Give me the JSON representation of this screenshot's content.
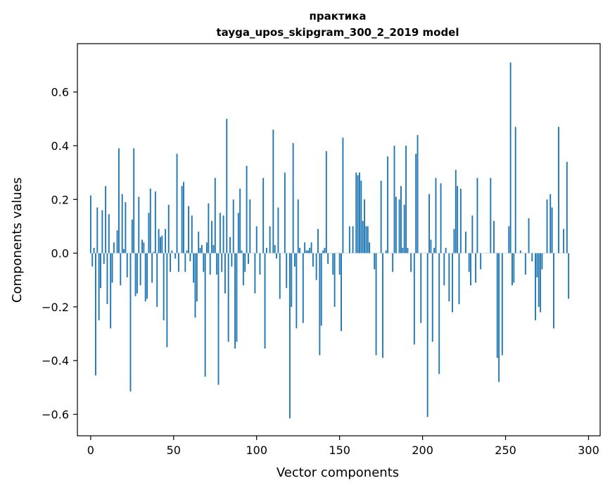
{
  "chart_data": {
    "type": "bar",
    "title": "практика",
    "subtitle": "tayga_upos_skipgram_300_2_2019 model",
    "xlabel": "Vector components",
    "ylabel": "Components values",
    "xlim": [
      -8,
      307
    ],
    "ylim": [
      -0.68,
      0.78
    ],
    "xticks": [
      0,
      50,
      100,
      150,
      200,
      250,
      300
    ],
    "yticks": [
      -0.6,
      -0.4,
      -0.2,
      0.0,
      0.2,
      0.4,
      0.6
    ],
    "ytick_labels": [
      "−0.6",
      "−0.4",
      "−0.2",
      "0.0",
      "0.2",
      "0.4",
      "0.6"
    ],
    "grid": false,
    "bar_color": "#1f77b4",
    "values": [
      0.215,
      -0.05,
      0.02,
      -0.455,
      0.17,
      -0.25,
      -0.13,
      0.16,
      -0.04,
      0.25,
      -0.19,
      0.145,
      -0.28,
      -0.11,
      0.04,
      0.0,
      0.085,
      0.39,
      -0.12,
      0.22,
      0.015,
      0.19,
      -0.09,
      0.0,
      -0.515,
      0.125,
      0.39,
      -0.16,
      -0.15,
      0.21,
      -0.12,
      0.05,
      0.04,
      -0.18,
      -0.17,
      0.15,
      0.24,
      -0.11,
      0.005,
      0.23,
      -0.2,
      0.09,
      0.06,
      0.065,
      -0.25,
      0.09,
      -0.35,
      0.18,
      -0.07,
      0.01,
      0.0,
      -0.02,
      0.37,
      -0.07,
      0.0,
      0.25,
      0.265,
      -0.07,
      0.01,
      0.175,
      -0.03,
      0.14,
      -0.11,
      -0.24,
      -0.18,
      0.08,
      0.02,
      0.03,
      -0.07,
      -0.46,
      0.04,
      0.185,
      -0.08,
      0.12,
      0.03,
      0.28,
      -0.08,
      -0.49,
      0.15,
      -0.07,
      0.14,
      -0.15,
      0.5,
      -0.33,
      0.06,
      -0.05,
      0.2,
      -0.355,
      -0.33,
      0.15,
      0.24,
      0.01,
      -0.12,
      -0.07,
      0.325,
      -0.04,
      0.2,
      0.0,
      0.0,
      -0.15,
      0.1,
      0.0,
      -0.08,
      0.0,
      0.28,
      -0.355,
      0.02,
      0.0,
      0.1,
      0.0,
      0.46,
      0.03,
      -0.02,
      0.17,
      -0.17,
      0.0,
      0.0,
      0.3,
      -0.13,
      0.0,
      -0.615,
      -0.2,
      0.41,
      -0.05,
      -0.28,
      0.2,
      0.02,
      0.0,
      -0.26,
      0.04,
      0.01,
      0.01,
      0.02,
      0.04,
      -0.05,
      0.0,
      -0.1,
      0.09,
      -0.38,
      -0.27,
      0.01,
      0.02,
      0.38,
      -0.04,
      0.0,
      0.0,
      -0.08,
      -0.2,
      0.0,
      0.0,
      -0.08,
      -0.29,
      0.43,
      0.0,
      0.0,
      0.0,
      0.1,
      0.0,
      0.1,
      0.0,
      0.3,
      0.29,
      0.3,
      0.27,
      0.12,
      0.2,
      0.1,
      0.1,
      0.04,
      0.0,
      0.0,
      -0.06,
      -0.38,
      0.0,
      0.0,
      0.27,
      -0.39,
      0.0,
      0.01,
      0.36,
      0.0,
      0.0,
      -0.07,
      0.4,
      0.21,
      0.0,
      0.2,
      0.25,
      0.02,
      0.18,
      0.4,
      0.02,
      0.0,
      -0.07,
      0.0,
      -0.34,
      0.37,
      0.44,
      0.0,
      -0.26,
      0.0,
      0.0,
      0.0,
      -0.61,
      0.22,
      0.05,
      -0.33,
      0.02,
      0.28,
      0.0,
      -0.45,
      0.26,
      0.0,
      -0.12,
      0.02,
      0.0,
      -0.18,
      0.0,
      -0.22,
      0.09,
      0.31,
      0.25,
      -0.19,
      0.24,
      0.0,
      0.0,
      0.08,
      0.0,
      -0.07,
      -0.12,
      0.14,
      0.0,
      -0.11,
      0.28,
      0.0,
      -0.06,
      0.0,
      0.0,
      0.0,
      0.0,
      0.0,
      0.28,
      0.0,
      0.12,
      0.0,
      -0.39,
      -0.48,
      0.0,
      -0.38,
      0.0,
      0.0,
      0.0,
      0.1,
      0.71,
      -0.12,
      -0.11,
      0.47,
      0.0,
      0.0,
      0.01,
      0.0,
      0.0,
      -0.08,
      0.0,
      0.13,
      0.0,
      -0.03,
      0.0,
      -0.25,
      -0.09,
      -0.2,
      -0.22,
      -0.06,
      0.0,
      0.0,
      0.2,
      0.0,
      0.22,
      0.17,
      -0.28,
      0.0,
      0.0,
      0.47,
      0.0,
      0.0,
      0.09,
      0.0,
      0.34,
      -0.17
    ]
  }
}
